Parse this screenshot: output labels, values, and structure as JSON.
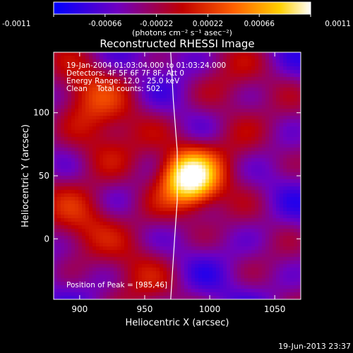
{
  "chart_data": {
    "type": "heatmap",
    "colorbar": {
      "min": -0.0011,
      "max": 0.0011,
      "ticks": [
        "-0.0011",
        "-0.00066",
        "-0.00022",
        "0.00022",
        "0.00066",
        "0.0011"
      ],
      "units_label": "(photons cm⁻² s⁻¹ asec⁻²)",
      "colormap": [
        "#0000ff",
        "#7000c0",
        "#c00000",
        "#ff6000",
        "#ffd000",
        "#ffffff"
      ]
    },
    "title": "Reconstructed RHESSI Image",
    "xlabel": "Heliocentric X (arcsec)",
    "ylabel": "Heliocentric Y (arcsec)",
    "xlim": [
      880,
      1070
    ],
    "ylim": [
      -48,
      148
    ],
    "xticks": [
      "900",
      "950",
      "1000",
      "1050"
    ],
    "yticks": [
      "0",
      "50",
      "100"
    ],
    "annotations": {
      "time_range": "19-Jan-2004 01:03:04.000 to 01:03:24.000",
      "detectors": "Detectors: 4F 5F 6F 7F 8F, Att 0",
      "energy_range": "Energy Range: 12.0 - 25.0 keV",
      "method_counts": "Clean    Total counts: 502.",
      "peak_position": "Position of Peak = [985,46]"
    },
    "peak": {
      "x": 985,
      "y": 46
    },
    "bright_regions": [
      {
        "x": 985,
        "y": 48,
        "strength": 1.0
      },
      {
        "x": 905,
        "y": 110,
        "strength": 0.6
      },
      {
        "x": 920,
        "y": 70,
        "strength": 0.5
      },
      {
        "x": 1020,
        "y": 70,
        "strength": 0.45
      },
      {
        "x": 900,
        "y": 15,
        "strength": 0.45
      },
      {
        "x": 960,
        "y": 20,
        "strength": 0.35
      },
      {
        "x": 1010,
        "y": 120,
        "strength": 0.3
      },
      {
        "x": 945,
        "y": -30,
        "strength": 0.3
      }
    ],
    "limb_curve": {
      "points": [
        [
          970,
          148
        ],
        [
          972,
          110
        ],
        [
          975,
          70
        ],
        [
          975,
          30
        ],
        [
          973,
          0
        ],
        [
          970,
          -48
        ]
      ]
    },
    "grid": false,
    "legend": "none"
  },
  "footer": {
    "timestamp": "19-Jun-2013 23:37"
  }
}
